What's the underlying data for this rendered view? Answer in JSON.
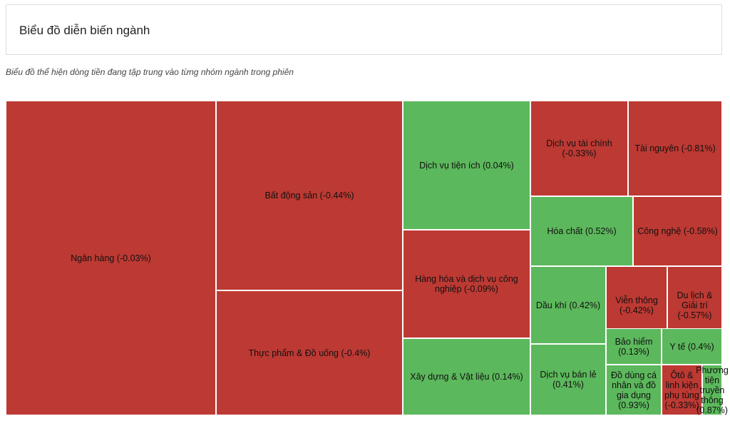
{
  "header": {
    "title": "Biểu đồ diễn biến ngành",
    "subtitle": "Biểu đồ thể hiện dòng tiền đang tập trung vào từng nhóm ngành trong phiên"
  },
  "colors": {
    "up": "#5cb85c",
    "down": "#bd3933"
  },
  "chart_data": {
    "type": "treemap",
    "items": [
      {
        "name": "Ngân hàng",
        "change": -0.03,
        "label": "Ngân hàng (-0.03%)"
      },
      {
        "name": "Bất động sản",
        "change": -0.44,
        "label": "Bất động sản (-0.44%)"
      },
      {
        "name": "Thực phẩm & Đồ uống",
        "change": -0.4,
        "label": "Thực phẩm & Đồ uống (-0.4%)"
      },
      {
        "name": "Dịch vụ tiện ích",
        "change": 0.04,
        "label": "Dịch vụ tiện ích (0.04%)"
      },
      {
        "name": "Hàng hóa và dịch vụ công nghiệp",
        "change": -0.09,
        "label": "Hàng hóa và dịch vụ công nghiệp (-0.09%)"
      },
      {
        "name": "Xây dựng & Vật liệu",
        "change": 0.14,
        "label": "Xây dựng & Vật liệu (0.14%)"
      },
      {
        "name": "Dịch vụ tài chính",
        "change": -0.33,
        "label": "Dịch vụ tài chính (-0.33%)"
      },
      {
        "name": "Tài nguyên",
        "change": -0.81,
        "label": "Tài nguyên (-0.81%)"
      },
      {
        "name": "Hóa chất",
        "change": 0.52,
        "label": "Hóa chất (0.52%)"
      },
      {
        "name": "Công nghệ",
        "change": -0.58,
        "label": "Công nghệ (-0.58%)"
      },
      {
        "name": "Dầu khí",
        "change": 0.42,
        "label": "Dầu khí (0.42%)"
      },
      {
        "name": "Viễn thông",
        "change": -0.42,
        "label": "Viễn thông (-0.42%)"
      },
      {
        "name": "Du lịch & Giải trí",
        "change": -0.57,
        "label": "Du lịch & Giải trí (-0.57%)"
      },
      {
        "name": "Dịch vụ bán lẻ",
        "change": 0.41,
        "label": "Dịch vụ bán lẻ (0.41%)"
      },
      {
        "name": "Bảo hiểm",
        "change": 0.13,
        "label": "Bảo hiểm (0.13%)"
      },
      {
        "name": "Y tế",
        "change": 0.4,
        "label": "Y tế (0.4%)"
      },
      {
        "name": "Đồ dùng cá nhân và đồ gia dụng",
        "change": 0.93,
        "label": "Đồ dùng cá nhân và đồ gia dụng (0.93%)"
      },
      {
        "name": "Ôtô & linh kiện phụ tùng",
        "change": -0.33,
        "label": "Ôtô & linh kiện phụ tùng (-0.33%)"
      },
      {
        "name": "Phương tiện truyền thông",
        "change": 0.87,
        "label": "Phương tiện truyền thông (0.87%)"
      }
    ]
  }
}
